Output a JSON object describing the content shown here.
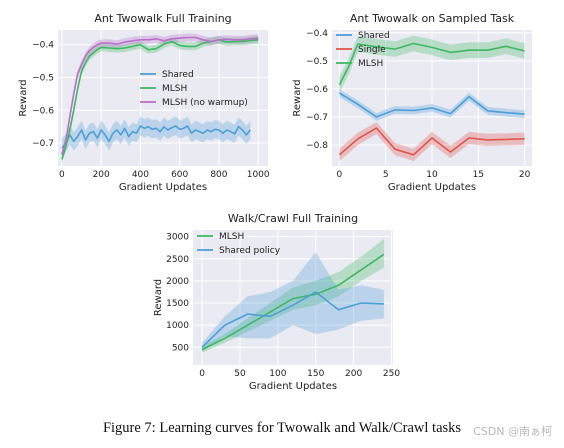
{
  "colors": {
    "panel_bg": "#eaeaf2",
    "grid": "#ffffff",
    "shared": "#4c9fd8",
    "mlsh": "#3fb864",
    "mlsh_no_warmup": "#b970c9",
    "single": "#e0544b"
  },
  "caption": "Figure 7: Learning curves for Twowalk and Walk/Crawl tasks",
  "watermark": "CSDN @南ぁ柯",
  "chart_data": [
    {
      "id": "ant-full",
      "type": "line",
      "title": "Ant Twowalk Full Training",
      "xlabel": "Gradient Updates",
      "ylabel": "Reward",
      "xlim": [
        -20,
        1050
      ],
      "ylim": [
        -0.77,
        -0.355
      ],
      "xticks": [
        0,
        200,
        400,
        600,
        800,
        1000
      ],
      "xtick_labels": [
        "0",
        "200",
        "400",
        "600",
        "800",
        "1000"
      ],
      "yticks": [
        -0.7,
        -0.6,
        -0.5,
        -0.4
      ],
      "ytick_labels": [
        "−0.7",
        "−0.6",
        "−0.5",
        "−0.4"
      ],
      "grid": true,
      "legend_position": "center-right",
      "series": [
        {
          "name": "Shared",
          "color_key": "shared",
          "points": [
            [
              0,
              -0.715
            ],
            [
              20,
              -0.7
            ],
            [
              40,
              -0.675
            ],
            [
              60,
              -0.695
            ],
            [
              80,
              -0.68
            ],
            [
              100,
              -0.66
            ],
            [
              120,
              -0.69
            ],
            [
              140,
              -0.67
            ],
            [
              160,
              -0.665
            ],
            [
              180,
              -0.685
            ],
            [
              200,
              -0.66
            ],
            [
              220,
              -0.675
            ],
            [
              240,
              -0.695
            ],
            [
              260,
              -0.67
            ],
            [
              280,
              -0.66
            ],
            [
              300,
              -0.675
            ],
            [
              320,
              -0.655
            ],
            [
              340,
              -0.68
            ],
            [
              360,
              -0.665
            ],
            [
              380,
              -0.67
            ],
            [
              400,
              -0.648
            ],
            [
              420,
              -0.655
            ],
            [
              440,
              -0.65
            ],
            [
              460,
              -0.658
            ],
            [
              480,
              -0.655
            ],
            [
              500,
              -0.665
            ],
            [
              520,
              -0.65
            ],
            [
              540,
              -0.66
            ],
            [
              560,
              -0.653
            ],
            [
              580,
              -0.648
            ],
            [
              600,
              -0.658
            ],
            [
              620,
              -0.655
            ],
            [
              640,
              -0.648
            ],
            [
              660,
              -0.67
            ],
            [
              680,
              -0.66
            ],
            [
              700,
              -0.665
            ],
            [
              720,
              -0.67
            ],
            [
              740,
              -0.66
            ],
            [
              760,
              -0.665
            ],
            [
              780,
              -0.658
            ],
            [
              800,
              -0.66
            ],
            [
              820,
              -0.67
            ],
            [
              840,
              -0.66
            ],
            [
              860,
              -0.665
            ],
            [
              880,
              -0.672
            ],
            [
              900,
              -0.65
            ],
            [
              920,
              -0.66
            ],
            [
              940,
              -0.675
            ],
            [
              960,
              -0.66
            ]
          ],
          "band": 0.028
        },
        {
          "name": "MLSH",
          "color_key": "mlsh",
          "points": [
            [
              0,
              -0.75
            ],
            [
              20,
              -0.71
            ],
            [
              40,
              -0.66
            ],
            [
              60,
              -0.6
            ],
            [
              80,
              -0.535
            ],
            [
              100,
              -0.48
            ],
            [
              120,
              -0.455
            ],
            [
              140,
              -0.435
            ],
            [
              160,
              -0.425
            ],
            [
              180,
              -0.415
            ],
            [
              200,
              -0.408
            ],
            [
              240,
              -0.41
            ],
            [
              280,
              -0.412
            ],
            [
              320,
              -0.41
            ],
            [
              360,
              -0.405
            ],
            [
              400,
              -0.4
            ],
            [
              440,
              -0.415
            ],
            [
              480,
              -0.412
            ],
            [
              520,
              -0.398
            ],
            [
              560,
              -0.39
            ],
            [
              600,
              -0.402
            ],
            [
              640,
              -0.405
            ],
            [
              680,
              -0.405
            ],
            [
              720,
              -0.395
            ],
            [
              760,
              -0.39
            ],
            [
              800,
              -0.385
            ],
            [
              840,
              -0.392
            ],
            [
              880,
              -0.39
            ],
            [
              920,
              -0.39
            ],
            [
              960,
              -0.387
            ],
            [
              1000,
              -0.385
            ]
          ],
          "band": 0.012
        },
        {
          "name": "MLSH (no warmup)",
          "color_key": "mlsh_no_warmup",
          "points": [
            [
              0,
              -0.735
            ],
            [
              20,
              -0.69
            ],
            [
              40,
              -0.62
            ],
            [
              60,
              -0.55
            ],
            [
              80,
              -0.49
            ],
            [
              100,
              -0.46
            ],
            [
              120,
              -0.435
            ],
            [
              140,
              -0.418
            ],
            [
              160,
              -0.408
            ],
            [
              180,
              -0.4
            ],
            [
              200,
              -0.395
            ],
            [
              240,
              -0.395
            ],
            [
              280,
              -0.398
            ],
            [
              320,
              -0.392
            ],
            [
              360,
              -0.388
            ],
            [
              400,
              -0.385
            ],
            [
              440,
              -0.385
            ],
            [
              480,
              -0.382
            ],
            [
              520,
              -0.388
            ],
            [
              560,
              -0.382
            ],
            [
              600,
              -0.38
            ],
            [
              640,
              -0.378
            ],
            [
              680,
              -0.378
            ],
            [
              720,
              -0.385
            ],
            [
              760,
              -0.39
            ],
            [
              800,
              -0.385
            ],
            [
              840,
              -0.383
            ],
            [
              880,
              -0.385
            ],
            [
              920,
              -0.385
            ],
            [
              960,
              -0.382
            ],
            [
              1000,
              -0.38
            ]
          ],
          "band": 0.012
        }
      ]
    },
    {
      "id": "ant-sampled",
      "type": "line",
      "title": "Ant Twowalk on Sampled Task",
      "xlabel": "Gradient Updates",
      "ylabel": "Reward",
      "xlim": [
        -0.8,
        20.8
      ],
      "ylim": [
        -0.875,
        -0.39
      ],
      "xticks": [
        0,
        5,
        10,
        15,
        20
      ],
      "xtick_labels": [
        "0",
        "5",
        "10",
        "15",
        "20"
      ],
      "yticks": [
        -0.8,
        -0.7,
        -0.6,
        -0.5,
        -0.4
      ],
      "ytick_labels": [
        "−0.8",
        "−0.7",
        "−0.6",
        "−0.5",
        "−0.4"
      ],
      "grid": true,
      "legend_position": "top-left",
      "series": [
        {
          "name": "Shared",
          "color_key": "shared",
          "points": [
            [
              0,
              -0.615
            ],
            [
              2,
              -0.655
            ],
            [
              4,
              -0.7
            ],
            [
              6,
              -0.675
            ],
            [
              8,
              -0.677
            ],
            [
              10,
              -0.668
            ],
            [
              12,
              -0.688
            ],
            [
              14,
              -0.628
            ],
            [
              16,
              -0.678
            ],
            [
              18,
              -0.685
            ],
            [
              20,
              -0.69
            ]
          ],
          "band": 0.014
        },
        {
          "name": "Single",
          "color_key": "single",
          "points": [
            [
              0,
              -0.835
            ],
            [
              2,
              -0.778
            ],
            [
              4,
              -0.74
            ],
            [
              6,
              -0.815
            ],
            [
              8,
              -0.835
            ],
            [
              10,
              -0.775
            ],
            [
              12,
              -0.825
            ],
            [
              14,
              -0.775
            ],
            [
              16,
              -0.782
            ],
            [
              18,
              -0.78
            ],
            [
              20,
              -0.778
            ]
          ],
          "band": 0.022
        },
        {
          "name": "MLSH",
          "color_key": "mlsh",
          "points": [
            [
              0,
              -0.585
            ],
            [
              1,
              -0.52
            ],
            [
              2,
              -0.44
            ],
            [
              4,
              -0.45
            ],
            [
              6,
              -0.458
            ],
            [
              8,
              -0.438
            ],
            [
              10,
              -0.452
            ],
            [
              12,
              -0.47
            ],
            [
              14,
              -0.462
            ],
            [
              16,
              -0.462
            ],
            [
              18,
              -0.448
            ],
            [
              20,
              -0.465
            ]
          ],
          "band": 0.028
        }
      ]
    },
    {
      "id": "walk-crawl",
      "type": "line",
      "title": "Walk/Crawl Full Training",
      "xlabel": "Gradient Updates",
      "ylabel": "Reward",
      "xlim": [
        -12,
        252
      ],
      "ylim": [
        100,
        3150
      ],
      "xticks": [
        0,
        50,
        100,
        150,
        200,
        250
      ],
      "xtick_labels": [
        "0",
        "50",
        "100",
        "150",
        "200",
        "250"
      ],
      "yticks": [
        500,
        1000,
        1500,
        2000,
        2500,
        3000
      ],
      "ytick_labels": [
        "500",
        "1000",
        "1500",
        "2000",
        "2500",
        "3000"
      ],
      "grid": true,
      "legend_position": "top-left",
      "series": [
        {
          "name": "MLSH",
          "color_key": "mlsh",
          "points": [
            [
              0,
              450
            ],
            [
              30,
              700
            ],
            [
              60,
              1000
            ],
            [
              90,
              1300
            ],
            [
              120,
              1600
            ],
            [
              150,
              1700
            ],
            [
              180,
              1900
            ],
            [
              210,
              2250
            ],
            [
              240,
              2600
            ]
          ],
          "band_lower": [
            380,
            600,
            850,
            1100,
            1350,
            1450,
            1650,
            2000,
            2300
          ],
          "band_upper": [
            520,
            800,
            1150,
            1500,
            1850,
            2000,
            2200,
            2550,
            2950
          ]
        },
        {
          "name": "Shared policy",
          "color_key": "shared",
          "points": [
            [
              0,
              500
            ],
            [
              30,
              1000
            ],
            [
              60,
              1250
            ],
            [
              90,
              1200
            ],
            [
              120,
              1450
            ],
            [
              150,
              1750
            ],
            [
              180,
              1350
            ],
            [
              210,
              1500
            ],
            [
              240,
              1480
            ]
          ],
          "band_lower": [
            400,
            750,
            700,
            700,
            1000,
            800,
            900,
            1100,
            1150
          ],
          "band_upper": [
            600,
            1200,
            1650,
            1750,
            2000,
            2650,
            1800,
            1900,
            1800
          ]
        }
      ]
    }
  ]
}
